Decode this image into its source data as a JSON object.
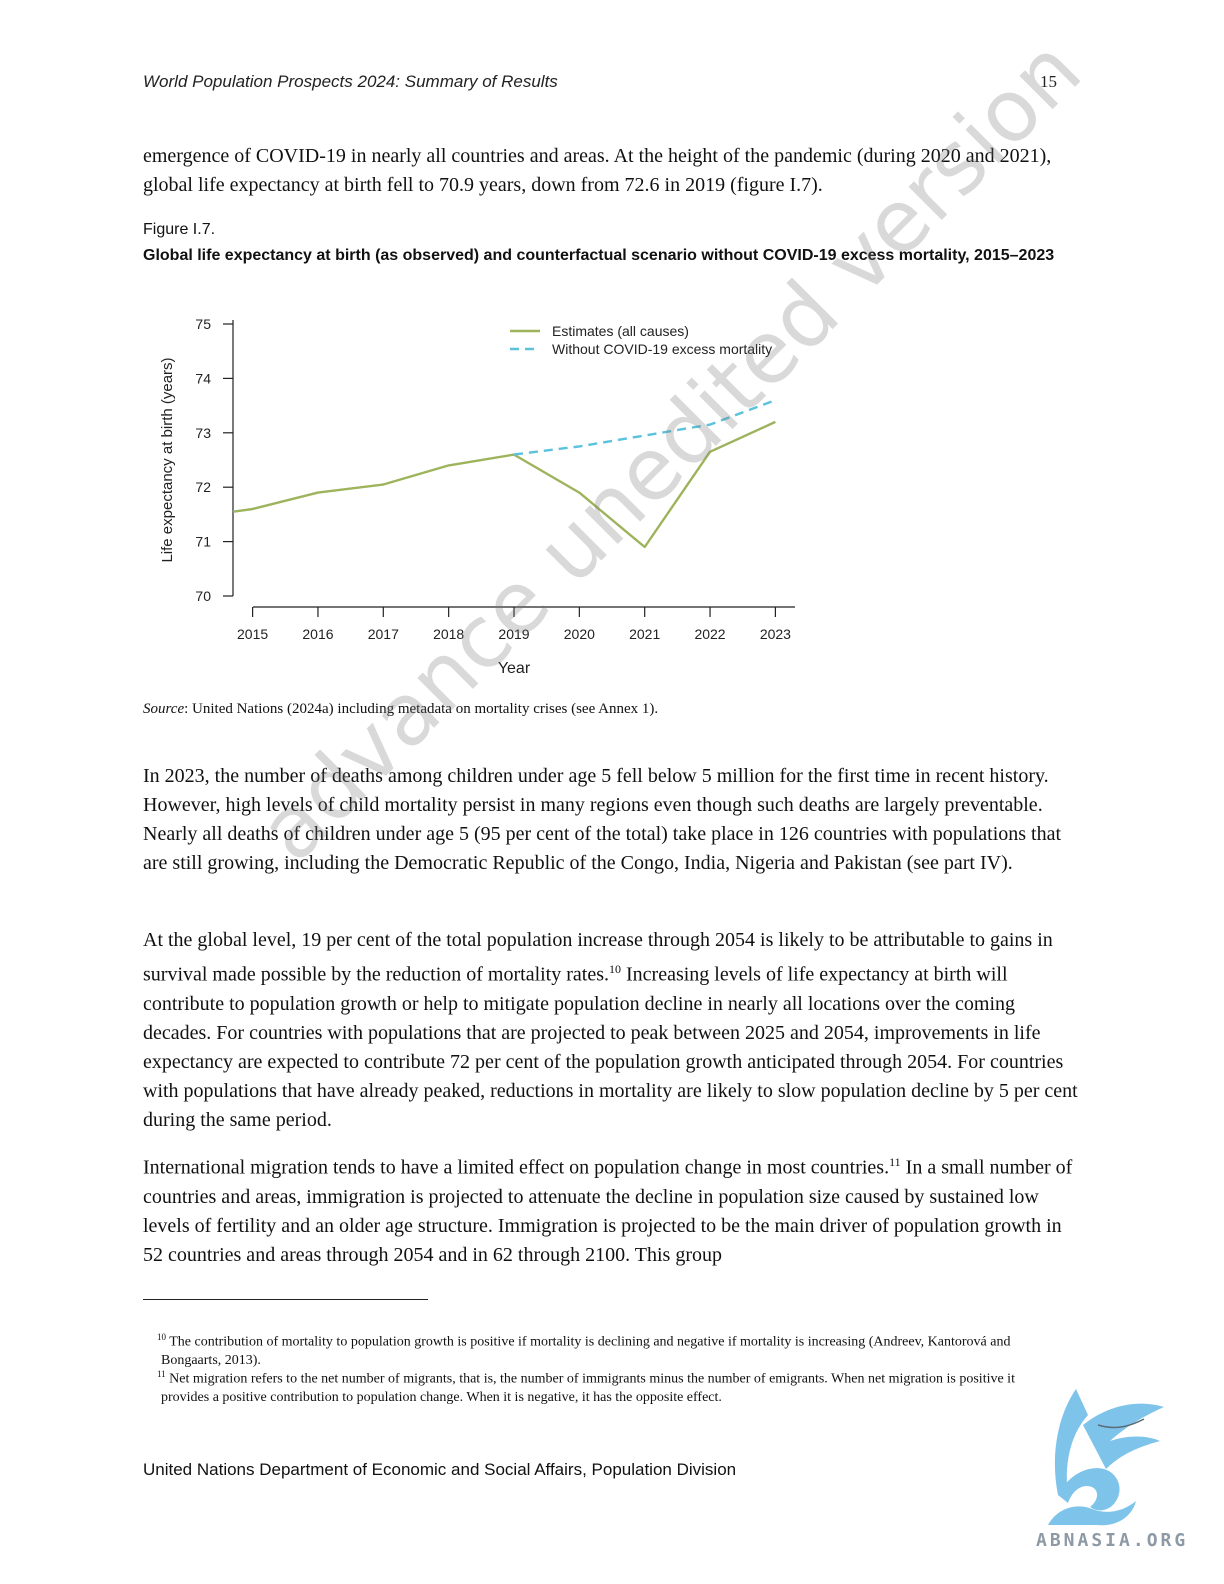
{
  "header": {
    "title": "World Population Prospects 2024: Summary of Results",
    "page": "15"
  },
  "paragraphs": {
    "p0": "emergence of COVID-19 in nearly all countries and areas. At the height of the pandemic (during 2020 and 2021), global life expectancy at birth fell to 70.9 years, down from 72.6 in 2019 (figure I.7).",
    "p1": "In 2023, the number of deaths among children under age 5 fell below 5 million for the first time in recent history. However, high levels of child mortality persist in many regions even though such deaths are largely preventable. Nearly all deaths of children under age 5 (95 per cent of the total) take place in 126 countries with populations that are still growing, including the Democratic Republic of the Congo, India, Nigeria and Pakistan (see part IV).",
    "p2a": "At the global level, 19 per cent of the total population increase through 2054 is likely to be attributable to gains in survival made possible by the reduction of mortality rates.",
    "p2_ref": "10",
    "p2b": " Increasing levels of life expectancy at birth will contribute to population growth or help to mitigate population decline in nearly all locations over the coming decades. For countries with populations that are projected to peak between 2025 and 2054, improvements in life expectancy are expected to contribute 72 per cent of the population growth anticipated through 2054. For countries with populations that have already peaked, reductions in mortality are likely to slow population decline by 5 per cent during the same period.",
    "p3a": "International migration tends to have a limited effect on population change in most countries.",
    "p3_ref": "11",
    "p3b": " In a small number of countries and areas, immigration is projected to attenuate the decline in population size caused by sustained low levels of fertility and an older age structure. Immigration is projected to be the main driver of population growth in 52 countries and areas through 2054 and in 62 through 2100. This group"
  },
  "figure": {
    "label": "Figure I.7.",
    "title": "Global life expectancy at birth (as observed) and counterfactual scenario without COVID-19 excess mortality, 2015–2023",
    "source_label": "Source",
    "source_text": ": United Nations (2024a) including metadata on mortality crises (see Annex 1)."
  },
  "chart_data": {
    "type": "line",
    "xlabel": "Year",
    "ylabel": "Life expectancy at birth (years)",
    "xlim": [
      2014.7,
      2023.3
    ],
    "ylim": [
      70,
      75
    ],
    "x_ticks": [
      2015,
      2016,
      2017,
      2018,
      2019,
      2020,
      2021,
      2022,
      2023
    ],
    "y_ticks": [
      70,
      71,
      72,
      73,
      74,
      75
    ],
    "grid": false,
    "legend": "top-right",
    "series": [
      {
        "name": "Estimates (all causes)",
        "style": "solid",
        "color": "#9db35c",
        "x": [
          2014.7,
          2015,
          2016,
          2017,
          2018,
          2019,
          2020,
          2021,
          2022,
          2023
        ],
        "values": [
          71.55,
          71.6,
          71.9,
          72.05,
          72.4,
          72.6,
          71.9,
          70.9,
          72.65,
          73.2
        ]
      },
      {
        "name": "Without COVID-19 excess mortality",
        "style": "dashed",
        "color": "#5bc2dc",
        "x": [
          2019,
          2020,
          2021,
          2022,
          2023
        ],
        "values": [
          72.6,
          72.75,
          72.95,
          73.15,
          73.6
        ]
      }
    ]
  },
  "footnotes": {
    "f10_num": "10",
    "f10_text": " The contribution of mortality to population growth is positive if mortality is declining and negative if mortality is increasing (Andreev, Kantorová and Bongaarts, 2013).",
    "f11_num": "11",
    "f11_text": " Net migration refers to the net number of migrants, that is, the number of immigrants minus the number of emigrants. When net migration is positive it provides a positive contribution to population change. When it is negative, it has the opposite effect."
  },
  "footer": "United Nations Department of Economic and Social Affairs, Population Division",
  "watermark": "advance unedited version",
  "logo": {
    "text": "ABNASIA.ORG",
    "color": "#7ec3ea"
  }
}
